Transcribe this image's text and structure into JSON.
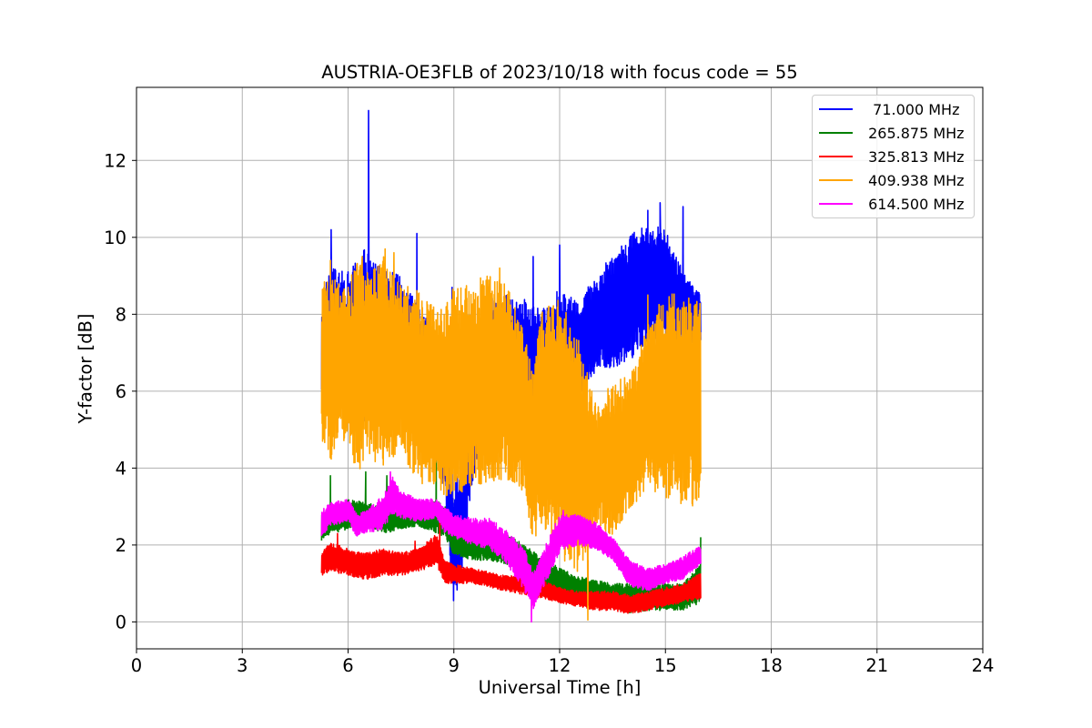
{
  "chart_data": {
    "type": "line",
    "title": "AUSTRIA-OE3FLB of 2023/10/18 with focus code = 55",
    "xlabel": "Universal Time [h]",
    "ylabel": "Y-factor [dB]",
    "xlim": [
      0,
      24
    ],
    "ylim": [
      -0.7,
      13.9
    ],
    "xticks": [
      0,
      3,
      6,
      9,
      12,
      15,
      18,
      21,
      24
    ],
    "yticks": [
      0,
      2,
      4,
      6,
      8,
      10,
      12
    ],
    "grid": true,
    "legend_position": "top-right",
    "series": [
      {
        "name": "  71.000 MHz",
        "color": "#0000ff",
        "x": [
          5.25,
          5.5,
          6.0,
          6.5,
          7.0,
          7.5,
          8.0,
          8.5,
          8.75,
          9.0,
          9.25,
          9.5,
          10.0,
          10.5,
          11.0,
          11.5,
          12.0,
          12.5,
          13.0,
          13.5,
          14.0,
          14.5,
          15.0,
          15.5,
          16.0
        ],
        "low": [
          5.5,
          5.8,
          5.5,
          5.2,
          5.8,
          5.5,
          5.4,
          4.6,
          3.3,
          0.2,
          1.5,
          3.5,
          5.5,
          5.6,
          5.0,
          4.8,
          5.5,
          5.8,
          6.5,
          6.6,
          6.8,
          7.3,
          7.4,
          7.2,
          7.3
        ],
        "high": [
          8.5,
          9.2,
          9.1,
          9.8,
          9.2,
          9.0,
          8.2,
          7.5,
          6.2,
          3.5,
          4.5,
          7.0,
          8.4,
          8.5,
          8.4,
          8.1,
          8.7,
          8.3,
          9.0,
          9.6,
          10.1,
          10.4,
          10.2,
          9.1,
          8.5
        ],
        "spikes": [
          [
            5.52,
            10.2
          ],
          [
            6.0,
            9.1
          ],
          [
            6.58,
            13.3
          ],
          [
            7.95,
            10.1
          ],
          [
            8.95,
            8.7
          ],
          [
            10.3,
            8.8
          ],
          [
            11.25,
            9.5
          ],
          [
            12.0,
            9.8
          ],
          [
            14.5,
            10.7
          ],
          [
            14.85,
            10.9
          ],
          [
            15.5,
            10.8
          ]
        ]
      },
      {
        "name": " 265.875 MHz",
        "color": "#008000",
        "x": [
          5.25,
          5.5,
          6.0,
          6.5,
          7.0,
          7.5,
          8.0,
          8.5,
          8.75,
          9.0,
          9.5,
          10.0,
          10.5,
          11.0,
          11.5,
          12.0,
          12.5,
          13.0,
          13.5,
          14.0,
          14.5,
          15.0,
          15.5,
          16.0
        ],
        "low": [
          2.1,
          2.3,
          2.4,
          2.5,
          2.3,
          2.4,
          2.5,
          2.3,
          2.2,
          1.7,
          1.6,
          1.6,
          1.5,
          1.2,
          0.9,
          0.7,
          0.5,
          0.5,
          0.4,
          0.2,
          0.3,
          0.3,
          0.3,
          0.5
        ],
        "high": [
          2.8,
          3.0,
          3.2,
          3.1,
          3.0,
          2.9,
          2.9,
          3.2,
          3.0,
          2.6,
          2.4,
          2.4,
          2.3,
          2.0,
          1.7,
          1.4,
          1.2,
          1.1,
          1.0,
          1.0,
          1.0,
          1.0,
          1.0,
          1.5
        ],
        "spikes": [
          [
            5.5,
            3.8
          ],
          [
            6.5,
            3.9
          ],
          [
            7.1,
            3.8
          ],
          [
            8.5,
            4.5
          ],
          [
            16.0,
            2.2
          ]
        ]
      },
      {
        "name": " 325.813 MHz",
        "color": "#ff0000",
        "x": [
          5.25,
          5.5,
          6.0,
          6.5,
          7.0,
          7.5,
          8.0,
          8.5,
          8.75,
          9.0,
          9.5,
          10.0,
          10.5,
          11.0,
          11.5,
          12.0,
          12.5,
          13.0,
          13.5,
          14.0,
          14.5,
          15.0,
          15.5,
          16.0
        ],
        "low": [
          1.2,
          1.3,
          1.2,
          1.1,
          1.2,
          1.2,
          1.3,
          1.5,
          1.0,
          1.0,
          1.0,
          0.9,
          0.8,
          0.7,
          0.6,
          0.5,
          0.4,
          0.3,
          0.3,
          0.2,
          0.3,
          0.4,
          0.5,
          0.6
        ],
        "high": [
          1.8,
          2.1,
          1.9,
          1.8,
          1.9,
          1.8,
          1.9,
          2.3,
          1.6,
          1.5,
          1.4,
          1.3,
          1.2,
          1.2,
          1.1,
          0.9,
          0.8,
          0.8,
          0.8,
          0.7,
          0.8,
          0.9,
          1.0,
          1.3
        ],
        "spikes": [
          [
            5.7,
            2.3
          ],
          [
            7.9,
            2.1
          ],
          [
            8.6,
            2.6
          ],
          [
            12.8,
            1.6
          ]
        ]
      },
      {
        "name": " 409.938 MHz",
        "color": "#ffa500",
        "x": [
          5.25,
          5.5,
          6.0,
          6.25,
          6.5,
          7.0,
          7.5,
          8.0,
          8.5,
          9.0,
          9.5,
          10.0,
          10.5,
          11.0,
          11.25,
          11.5,
          12.0,
          12.5,
          13.0,
          13.5,
          14.0,
          14.5,
          15.0,
          15.5,
          16.0
        ],
        "low": [
          4.5,
          4.2,
          4.8,
          3.8,
          4.3,
          4.0,
          4.4,
          3.6,
          3.4,
          3.2,
          3.5,
          3.6,
          3.7,
          3.3,
          2.1,
          2.5,
          1.6,
          1.0,
          2.5,
          2.2,
          2.8,
          3.5,
          3.2,
          3.0,
          3.0
        ],
        "high": [
          8.8,
          9.0,
          8.7,
          9.5,
          9.2,
          9.5,
          8.8,
          8.6,
          8.2,
          8.7,
          8.8,
          9.1,
          8.8,
          7.5,
          6.5,
          8.2,
          8.5,
          7.6,
          5.7,
          6.2,
          6.5,
          7.7,
          8.6,
          8.5,
          8.3
        ],
        "spikes": [
          [
            5.5,
            9.4
          ],
          [
            6.4,
            9.5
          ],
          [
            7.05,
            9.7
          ],
          [
            7.3,
            9.6
          ],
          [
            10.3,
            9.2
          ],
          [
            11.5,
            7.8
          ],
          [
            12.8,
            0.05
          ],
          [
            14.5,
            8.5
          ],
          [
            15.7,
            7.8
          ]
        ]
      },
      {
        "name": " 614.500 MHz",
        "color": "#ff00ff",
        "x": [
          5.25,
          5.5,
          6.0,
          6.25,
          6.5,
          7.0,
          7.25,
          7.5,
          8.0,
          8.5,
          8.75,
          9.0,
          9.5,
          10.0,
          10.5,
          11.0,
          11.25,
          11.5,
          12.0,
          12.5,
          13.0,
          13.5,
          14.0,
          14.5,
          15.0,
          15.5,
          16.0
        ],
        "low": [
          2.2,
          2.5,
          2.6,
          2.2,
          2.3,
          2.4,
          2.8,
          2.7,
          2.6,
          2.7,
          2.3,
          2.2,
          2.0,
          1.9,
          1.5,
          0.8,
          0.3,
          0.8,
          1.8,
          2.0,
          1.9,
          1.6,
          0.9,
          0.8,
          1.0,
          1.1,
          1.5
        ],
        "high": [
          2.9,
          3.1,
          3.2,
          2.8,
          2.9,
          3.3,
          3.8,
          3.4,
          3.2,
          3.2,
          3.0,
          2.8,
          2.7,
          2.7,
          2.4,
          1.9,
          1.3,
          1.8,
          2.8,
          2.8,
          2.6,
          2.2,
          1.6,
          1.4,
          1.5,
          1.7,
          2.0
        ],
        "spikes": [
          [
            7.2,
            3.9
          ],
          [
            11.2,
            0.0
          ],
          [
            12.1,
            2.9
          ]
        ]
      }
    ]
  }
}
